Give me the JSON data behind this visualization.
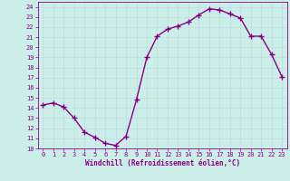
{
  "x": [
    0,
    1,
    2,
    3,
    4,
    5,
    6,
    7,
    8,
    9,
    10,
    11,
    12,
    13,
    14,
    15,
    16,
    17,
    18,
    19,
    20,
    21,
    22,
    23
  ],
  "y": [
    14.3,
    14.5,
    14.1,
    13.0,
    11.6,
    11.1,
    10.5,
    10.3,
    11.2,
    14.8,
    19.0,
    21.1,
    21.8,
    22.1,
    22.5,
    23.2,
    23.8,
    23.7,
    23.3,
    22.9,
    21.1,
    21.1,
    19.3,
    17.1
  ],
  "xlim": [
    -0.5,
    23.5
  ],
  "ylim": [
    10,
    24.5
  ],
  "yticks": [
    10,
    11,
    12,
    13,
    14,
    15,
    16,
    17,
    18,
    19,
    20,
    21,
    22,
    23,
    24
  ],
  "xticks": [
    0,
    1,
    2,
    3,
    4,
    5,
    6,
    7,
    8,
    9,
    10,
    11,
    12,
    13,
    14,
    15,
    16,
    17,
    18,
    19,
    20,
    21,
    22,
    23
  ],
  "xlabel": "Windchill (Refroidissement éolien,°C)",
  "line_color": "#880088",
  "marker": "+",
  "marker_size": 4,
  "bg_color": "#cceee8",
  "grid_color": "#bbdddd",
  "tick_label_color": "#880088",
  "axis_label_color": "#880088",
  "font_family": "monospace",
  "tick_fontsize": 5.0,
  "xlabel_fontsize": 5.5,
  "linewidth": 1.0
}
